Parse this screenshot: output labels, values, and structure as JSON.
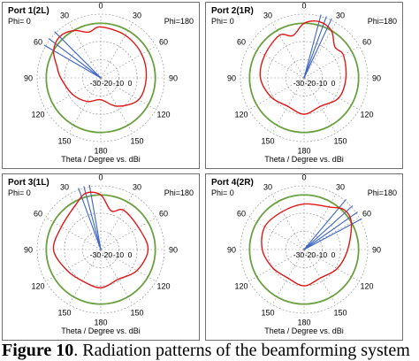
{
  "figure": {
    "caption_label": "Figure 10",
    "caption_text": ". Radiation patterns of the beamforming system"
  },
  "colors": {
    "pattern": "#e01818",
    "beam": "#3c64c8",
    "reference_circle": "#6aa040",
    "grid": "#9a9a9a",
    "text": "#000000"
  },
  "common": {
    "phi_left": "Phi=  0",
    "phi_right": "Phi=180",
    "axis_label": "Theta / Degree vs. dBi",
    "angle_labels": [
      "0",
      "30",
      "60",
      "90",
      "120",
      "150",
      "180",
      "150",
      "120",
      "90",
      "60",
      "30"
    ],
    "radial_labels": [
      "-30",
      "-20",
      "-10",
      "0"
    ]
  },
  "panels": [
    {
      "title": "Port 1(2L)"
    },
    {
      "title": "Port 2(1R)"
    },
    {
      "title": "Port 3(1L)"
    },
    {
      "title": "Port 4(2R)"
    }
  ],
  "chart_data": [
    {
      "type": "polar",
      "title": "Port 1(2L)",
      "xlabel": "Theta / Degree vs. dBi",
      "radial_ticks_dbi": [
        -30,
        -20,
        -10,
        0
      ],
      "theta_ticks_deg": [
        0,
        30,
        60,
        90,
        120,
        150,
        180,
        150,
        120,
        90,
        60,
        30
      ],
      "beam_lines_deg": [
        -45,
        -53,
        -60
      ],
      "pattern_dbi": [
        {
          "theta": 0,
          "dbi": -2
        },
        {
          "theta": -15,
          "dbi": -4
        },
        {
          "theta": -30,
          "dbi": 0
        },
        {
          "theta": -45,
          "dbi": 2
        },
        {
          "theta": -60,
          "dbi": 0
        },
        {
          "theta": -75,
          "dbi": -5
        },
        {
          "theta": -90,
          "dbi": -8
        },
        {
          "theta": -120,
          "dbi": -12
        },
        {
          "theta": -150,
          "dbi": -15
        },
        {
          "theta": 180,
          "dbi": -18
        },
        {
          "theta": 150,
          "dbi": -12
        },
        {
          "theta": 120,
          "dbi": -6
        },
        {
          "theta": 90,
          "dbi": -5
        },
        {
          "theta": 60,
          "dbi": -4
        },
        {
          "theta": 30,
          "dbi": -3
        }
      ]
    },
    {
      "type": "polar",
      "title": "Port 2(1R)",
      "xlabel": "Theta / Degree vs. dBi",
      "radial_ticks_dbi": [
        -30,
        -20,
        -10,
        0
      ],
      "theta_ticks_deg": [
        0,
        30,
        60,
        90,
        120,
        150,
        180,
        150,
        120,
        90,
        60,
        30
      ],
      "beam_lines_deg": [
        15,
        20,
        25
      ],
      "pattern_dbi": [
        {
          "theta": 0,
          "dbi": 0
        },
        {
          "theta": 15,
          "dbi": 2
        },
        {
          "theta": 30,
          "dbi": 0
        },
        {
          "theta": 45,
          "dbi": -6
        },
        {
          "theta": 60,
          "dbi": -5
        },
        {
          "theta": 90,
          "dbi": -7
        },
        {
          "theta": 120,
          "dbi": -8
        },
        {
          "theta": 150,
          "dbi": -12
        },
        {
          "theta": 180,
          "dbi": -10
        },
        {
          "theta": -150,
          "dbi": -12
        },
        {
          "theta": -120,
          "dbi": -9
        },
        {
          "theta": -90,
          "dbi": -6
        },
        {
          "theta": -60,
          "dbi": -5
        },
        {
          "theta": -30,
          "dbi": -3
        },
        {
          "theta": -15,
          "dbi": -6
        }
      ]
    },
    {
      "type": "polar",
      "title": "Port 3(1L)",
      "xlabel": "Theta / Degree vs. dBi",
      "radial_ticks_dbi": [
        -30,
        -20,
        -10,
        0
      ],
      "theta_ticks_deg": [
        0,
        30,
        60,
        90,
        120,
        150,
        180,
        150,
        120,
        90,
        60,
        30
      ],
      "beam_lines_deg": [
        -10,
        -15,
        -20
      ],
      "pattern_dbi": [
        {
          "theta": 0,
          "dbi": 0
        },
        {
          "theta": -15,
          "dbi": 2
        },
        {
          "theta": -30,
          "dbi": -2
        },
        {
          "theta": -60,
          "dbi": -5
        },
        {
          "theta": -90,
          "dbi": -4
        },
        {
          "theta": -120,
          "dbi": -8
        },
        {
          "theta": -150,
          "dbi": -10
        },
        {
          "theta": 180,
          "dbi": -9
        },
        {
          "theta": 150,
          "dbi": -11
        },
        {
          "theta": 120,
          "dbi": -7
        },
        {
          "theta": 90,
          "dbi": -4
        },
        {
          "theta": 60,
          "dbi": -6
        },
        {
          "theta": 30,
          "dbi": -5
        },
        {
          "theta": 15,
          "dbi": -8
        }
      ]
    },
    {
      "type": "polar",
      "title": "Port 4(2R)",
      "xlabel": "Theta / Degree vs. dBi",
      "radial_ticks_dbi": [
        -30,
        -20,
        -10,
        0
      ],
      "theta_ticks_deg": [
        0,
        30,
        60,
        90,
        120,
        150,
        180,
        150,
        120,
        90,
        60,
        30
      ],
      "beam_lines_deg": [
        40,
        48,
        55,
        62
      ],
      "pattern_dbi": [
        {
          "theta": 0,
          "dbi": -5
        },
        {
          "theta": 30,
          "dbi": -3
        },
        {
          "theta": 45,
          "dbi": 1
        },
        {
          "theta": 60,
          "dbi": 0
        },
        {
          "theta": 90,
          "dbi": -6
        },
        {
          "theta": 120,
          "dbi": -9
        },
        {
          "theta": 150,
          "dbi": -12
        },
        {
          "theta": 180,
          "dbi": -10
        },
        {
          "theta": -150,
          "dbi": -12
        },
        {
          "theta": -120,
          "dbi": -10
        },
        {
          "theta": -90,
          "dbi": -7
        },
        {
          "theta": -60,
          "dbi": -5
        },
        {
          "theta": -30,
          "dbi": -6
        }
      ]
    }
  ]
}
